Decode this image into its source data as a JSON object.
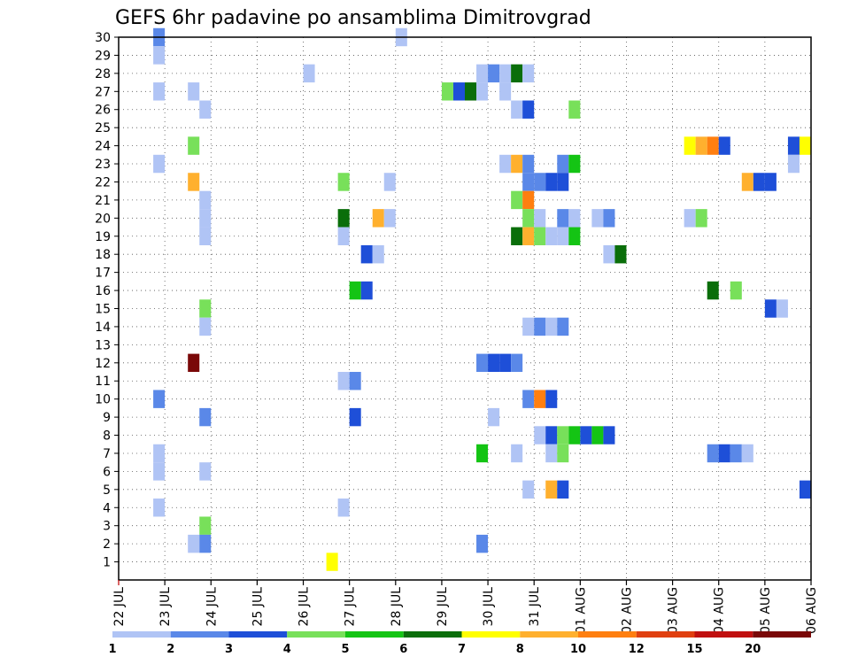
{
  "chart_data": {
    "type": "heatmap",
    "title": "GEFS 6hr padavine po ansamblima Dimitrovgrad",
    "x_tick_labels": [
      "22 JUL",
      "23 JUL",
      "24 JUL",
      "25 JUL",
      "26 JUL",
      "27 JUL",
      "28 JUL",
      "29 JUL",
      "30 JUL",
      "31 JUL",
      "01 AUG",
      "02 AUG",
      "03 AUG",
      "04 AUG",
      "05 AUG",
      "06 AUG"
    ],
    "y_tick_labels": [
      "1",
      "2",
      "3",
      "4",
      "5",
      "6",
      "7",
      "8",
      "9",
      "10",
      "11",
      "12",
      "13",
      "14",
      "15",
      "16",
      "17",
      "18",
      "19",
      "20",
      "21",
      "22",
      "23",
      "24",
      "25",
      "26",
      "27",
      "28",
      "29",
      "30"
    ],
    "x_unit": "6-hour step from 22 JUL 00UTC",
    "x_range": [
      0,
      60
    ],
    "y_range": [
      0,
      30
    ],
    "grid": true,
    "colorbar": {
      "thresholds": [
        "1",
        "2",
        "3",
        "4",
        "5",
        "6",
        "7",
        "8",
        "10",
        "12",
        "15",
        "20"
      ],
      "colors": [
        "#b0c4f5",
        "#5a88e8",
        "#1e4fd8",
        "#78e05a",
        "#14c414",
        "#0a6e0a",
        "#ffff00",
        "#ffb02e",
        "#ff7f10",
        "#e04010",
        "#c01010",
        "#7a0808"
      ]
    },
    "cells": [
      [
        3.5,
        30,
        1
      ],
      [
        24.5,
        30,
        0
      ],
      [
        3.5,
        29,
        0
      ],
      [
        16.5,
        28,
        0
      ],
      [
        31.5,
        28,
        0
      ],
      [
        32.5,
        28,
        1
      ],
      [
        33.5,
        28,
        0
      ],
      [
        34.5,
        28,
        5
      ],
      [
        35.5,
        28,
        0
      ],
      [
        3.5,
        27,
        0
      ],
      [
        6.5,
        27,
        0
      ],
      [
        28.5,
        27,
        3
      ],
      [
        29.5,
        27,
        2
      ],
      [
        30.5,
        27,
        5
      ],
      [
        31.5,
        27,
        0
      ],
      [
        33.5,
        27,
        0
      ],
      [
        7.5,
        26,
        0
      ],
      [
        34.5,
        26,
        0
      ],
      [
        35.5,
        26,
        2
      ],
      [
        39.5,
        26,
        3
      ],
      [
        6.5,
        24,
        3
      ],
      [
        49.5,
        24,
        6
      ],
      [
        50.5,
        24,
        7
      ],
      [
        51.5,
        24,
        8
      ],
      [
        52.5,
        24,
        2
      ],
      [
        58.5,
        24,
        2
      ],
      [
        59.5,
        24,
        6
      ],
      [
        3.5,
        23,
        0
      ],
      [
        33.5,
        23,
        0
      ],
      [
        34.5,
        23,
        7
      ],
      [
        35.5,
        23,
        1
      ],
      [
        38.5,
        23,
        1
      ],
      [
        39.5,
        23,
        4
      ],
      [
        58.5,
        23,
        0
      ],
      [
        6.5,
        22,
        7
      ],
      [
        19.5,
        22,
        3
      ],
      [
        23.5,
        22,
        0
      ],
      [
        35.5,
        22,
        1
      ],
      [
        36.5,
        22,
        1
      ],
      [
        37.5,
        22,
        2
      ],
      [
        38.5,
        22,
        2
      ],
      [
        54.5,
        22,
        7
      ],
      [
        55.5,
        22,
        2
      ],
      [
        56.5,
        22,
        2
      ],
      [
        7.5,
        21,
        0
      ],
      [
        34.5,
        21,
        3
      ],
      [
        35.5,
        21,
        8
      ],
      [
        7.5,
        20,
        0
      ],
      [
        19.5,
        20,
        5
      ],
      [
        22.5,
        20,
        7
      ],
      [
        23.5,
        20,
        0
      ],
      [
        35.5,
        20,
        3
      ],
      [
        36.5,
        20,
        0
      ],
      [
        38.5,
        20,
        1
      ],
      [
        39.5,
        20,
        0
      ],
      [
        41.5,
        20,
        0
      ],
      [
        42.5,
        20,
        1
      ],
      [
        49.5,
        20,
        0
      ],
      [
        50.5,
        20,
        3
      ],
      [
        7.5,
        19,
        0
      ],
      [
        19.5,
        19,
        0
      ],
      [
        34.5,
        19,
        5
      ],
      [
        35.5,
        19,
        7
      ],
      [
        36.5,
        19,
        3
      ],
      [
        37.5,
        19,
        0
      ],
      [
        38.5,
        19,
        0
      ],
      [
        39.5,
        19,
        4
      ],
      [
        21.5,
        18,
        2
      ],
      [
        22.5,
        18,
        0
      ],
      [
        42.5,
        18,
        0
      ],
      [
        43.5,
        18,
        5
      ],
      [
        20.5,
        16,
        4
      ],
      [
        21.5,
        16,
        2
      ],
      [
        51.5,
        16,
        5
      ],
      [
        53.5,
        16,
        3
      ],
      [
        7.5,
        15,
        3
      ],
      [
        56.5,
        15,
        2
      ],
      [
        57.5,
        15,
        0
      ],
      [
        7.5,
        14,
        0
      ],
      [
        35.5,
        14,
        0
      ],
      [
        36.5,
        14,
        1
      ],
      [
        37.5,
        14,
        0
      ],
      [
        38.5,
        14,
        1
      ],
      [
        6.5,
        12,
        11
      ],
      [
        31.5,
        12,
        1
      ],
      [
        32.5,
        12,
        2
      ],
      [
        33.5,
        12,
        2
      ],
      [
        34.5,
        12,
        1
      ],
      [
        19.5,
        11,
        0
      ],
      [
        20.5,
        11,
        1
      ],
      [
        3.5,
        10,
        1
      ],
      [
        35.5,
        10,
        1
      ],
      [
        36.5,
        10,
        8
      ],
      [
        37.5,
        10,
        2
      ],
      [
        7.5,
        9,
        1
      ],
      [
        20.5,
        9,
        2
      ],
      [
        32.5,
        9,
        0
      ],
      [
        36.5,
        8,
        0
      ],
      [
        37.5,
        8,
        2
      ],
      [
        38.5,
        8,
        3
      ],
      [
        39.5,
        8,
        4
      ],
      [
        40.5,
        8,
        2
      ],
      [
        41.5,
        8,
        4
      ],
      [
        42.5,
        8,
        2
      ],
      [
        3.5,
        7,
        0
      ],
      [
        31.5,
        7,
        4
      ],
      [
        34.5,
        7,
        0
      ],
      [
        37.5,
        7,
        0
      ],
      [
        38.5,
        7,
        3
      ],
      [
        51.5,
        7,
        1
      ],
      [
        52.5,
        7,
        2
      ],
      [
        53.5,
        7,
        1
      ],
      [
        54.5,
        7,
        0
      ],
      [
        3.5,
        6,
        0
      ],
      [
        7.5,
        6,
        0
      ],
      [
        35.5,
        5,
        0
      ],
      [
        37.5,
        5,
        7
      ],
      [
        38.5,
        5,
        2
      ],
      [
        59.5,
        5,
        2
      ],
      [
        3.5,
        4,
        0
      ],
      [
        19.5,
        4,
        0
      ],
      [
        7.5,
        3,
        3
      ],
      [
        6.5,
        2,
        0
      ],
      [
        7.5,
        2,
        1
      ],
      [
        31.5,
        2,
        1
      ],
      [
        18.5,
        1,
        6
      ]
    ]
  }
}
